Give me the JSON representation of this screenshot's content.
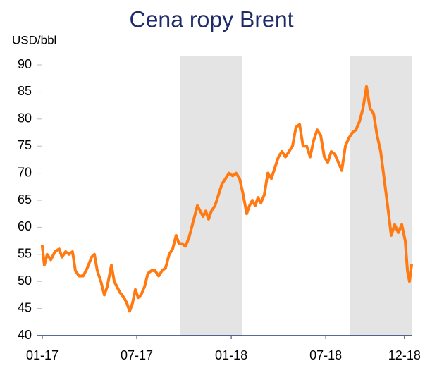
{
  "chart_data": {
    "type": "line",
    "title": "Cena ropy Brent",
    "y_label": "USD/bbl",
    "xlim": [
      0,
      23.5
    ],
    "xticks": [
      {
        "value": 0,
        "label": "01-17"
      },
      {
        "value": 6,
        "label": "07-17"
      },
      {
        "value": 12,
        "label": "01-18"
      },
      {
        "value": 18,
        "label": "07-18"
      },
      {
        "value": 23,
        "label": "12-18"
      }
    ],
    "ylim": [
      40,
      90
    ],
    "yticks": [
      40,
      45,
      50,
      55,
      60,
      65,
      70,
      75,
      80,
      85,
      90
    ],
    "shaded_ranges": [
      [
        8.73,
        12.71
      ],
      [
        19.52,
        23.5
      ]
    ],
    "shade_color": "#e4e4e4",
    "axis_color": "#1f3a6e",
    "series": [
      {
        "color": "#ff7a12",
        "x": [
          0,
          0.13,
          0.31,
          0.54,
          0.81,
          1.07,
          1.25,
          1.48,
          1.7,
          1.92,
          2.1,
          2.33,
          2.6,
          2.86,
          3.13,
          3.31,
          3.49,
          3.72,
          3.94,
          4.12,
          4.39,
          4.57,
          4.92,
          5.19,
          5.37,
          5.55,
          5.73,
          5.91,
          6.09,
          6.27,
          6.49,
          6.71,
          6.94,
          7.16,
          7.39,
          7.61,
          7.83,
          8.06,
          8.28,
          8.5,
          8.68,
          8.86,
          9.09,
          9.31,
          9.49,
          9.67,
          9.85,
          10.03,
          10.21,
          10.38,
          10.56,
          10.74,
          10.97,
          11.19,
          11.41,
          11.64,
          11.86,
          12.09,
          12.31,
          12.53,
          12.76,
          12.98,
          13.16,
          13.34,
          13.52,
          13.7,
          13.88,
          14.1,
          14.32,
          14.55,
          14.77,
          15.0,
          15.22,
          15.44,
          15.67,
          15.89,
          16.11,
          16.34,
          16.56,
          16.79,
          17.01,
          17.23,
          17.46,
          17.68,
          17.91,
          18.13,
          18.35,
          18.58,
          18.8,
          19.02,
          19.25,
          19.47,
          19.7,
          19.92,
          20.14,
          20.37,
          20.59,
          20.81,
          21.04,
          21.26,
          21.49,
          21.71,
          21.93,
          22.16,
          22.38,
          22.61,
          22.83,
          23.05,
          23.19,
          23.32,
          23.45
        ],
        "values": [
          56.5,
          53,
          55,
          54,
          55.5,
          56,
          54.5,
          55.5,
          55,
          55.5,
          52,
          51,
          51,
          52.5,
          54.5,
          55,
          52,
          50,
          47.5,
          49,
          53,
          50,
          48,
          47,
          46,
          44.5,
          46,
          48.5,
          47,
          47.5,
          49,
          51.5,
          52,
          52,
          51,
          52,
          52.5,
          55,
          56,
          58.5,
          57,
          57,
          56.5,
          58,
          60,
          62,
          64,
          63,
          62,
          63,
          61.5,
          63,
          64,
          66,
          68,
          69,
          70,
          69.5,
          70,
          69,
          66,
          62.5,
          64,
          65,
          64,
          65.5,
          64.5,
          66,
          70,
          69,
          71,
          73,
          74,
          73,
          74,
          75,
          78.5,
          79,
          75,
          75,
          73,
          76,
          78,
          77,
          73,
          72,
          74,
          73.5,
          72,
          70.5,
          75,
          76.5,
          77.5,
          78,
          79.5,
          82,
          86,
          82,
          81,
          77,
          74,
          69,
          64,
          58.5,
          60.5,
          59,
          60.5,
          57.5,
          52,
          50,
          53
        ]
      }
    ]
  }
}
